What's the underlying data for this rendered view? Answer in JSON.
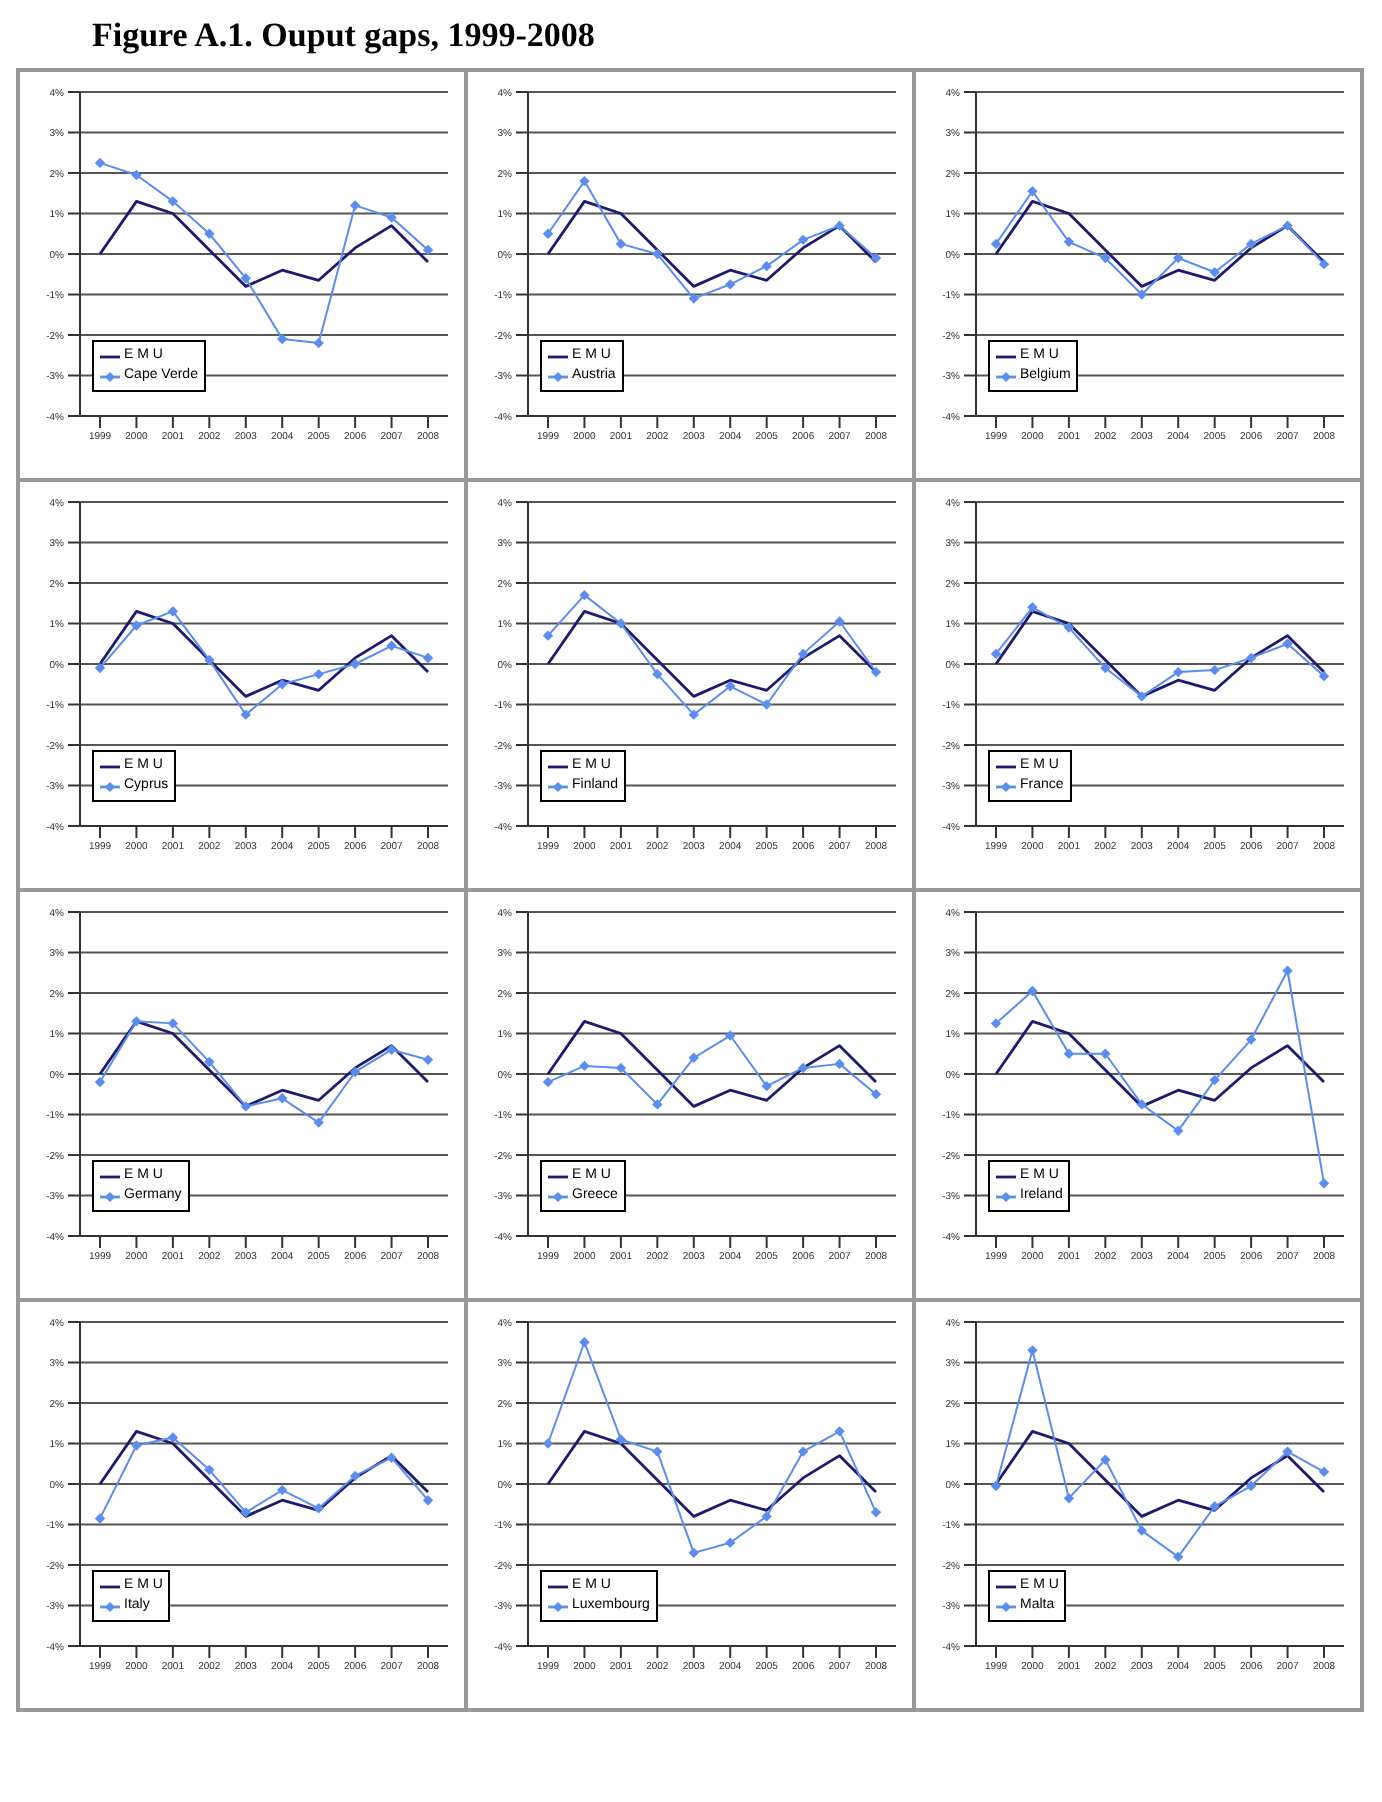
{
  "chart_data": [
    {
      "type": "line",
      "title": "Figure A.1. Ouput gaps, 1999-2008",
      "categories": [
        "1999",
        "2000",
        "2001",
        "2002",
        "2003",
        "2004",
        "2005",
        "2006",
        "2007",
        "2008"
      ],
      "ylim": [
        -4,
        4
      ],
      "yticks": [
        {
          "value": -4,
          "label": "-4%"
        },
        {
          "value": -3,
          "label": "-3%"
        },
        {
          "value": -2,
          "label": "-2%"
        },
        {
          "value": -1,
          "label": "-1%"
        },
        {
          "value": 0,
          "label": "0%"
        },
        {
          "value": 1,
          "label": "1%"
        },
        {
          "value": 2,
          "label": "2%"
        },
        {
          "value": 3,
          "label": "3%"
        },
        {
          "value": 4,
          "label": "4%"
        }
      ],
      "grid": "y",
      "legend": "bottom left",
      "series": [
        {
          "name": "E M U",
          "color": "#1f1a6e",
          "marker": "none",
          "values": [
            0,
            1.3,
            1.0,
            0.1,
            -0.8,
            -0.4,
            -0.65,
            0.15,
            0.7,
            -0.2
          ]
        },
        {
          "name": "Cape Verde",
          "color": "#5b8def",
          "marker": "diamond",
          "values": [
            2.25,
            1.95,
            1.3,
            0.5,
            -0.6,
            -2.1,
            -2.2,
            1.2,
            0.9,
            0.1
          ]
        }
      ]
    },
    {
      "type": "line",
      "categories": [
        "1999",
        "2000",
        "2001",
        "2002",
        "2003",
        "2004",
        "2005",
        "2006",
        "2007",
        "2008"
      ],
      "ylim": [
        -4,
        4
      ],
      "yticks": [
        {
          "value": -4,
          "label": "-4%"
        },
        {
          "value": -3,
          "label": "-3%"
        },
        {
          "value": -2,
          "label": "-2%"
        },
        {
          "value": -1,
          "label": "-1%"
        },
        {
          "value": 0,
          "label": "0%"
        },
        {
          "value": 1,
          "label": "1%"
        },
        {
          "value": 2,
          "label": "2%"
        },
        {
          "value": 3,
          "label": "3%"
        },
        {
          "value": 4,
          "label": "4%"
        }
      ],
      "grid": "y",
      "legend": "bottom left",
      "series": [
        {
          "name": "E M U",
          "color": "#1f1a6e",
          "marker": "none",
          "values": [
            0,
            1.3,
            1.0,
            0.1,
            -0.8,
            -0.4,
            -0.65,
            0.15,
            0.7,
            -0.2
          ]
        },
        {
          "name": "Austria",
          "color": "#5b8def",
          "marker": "diamond",
          "values": [
            0.5,
            1.8,
            0.25,
            0.0,
            -1.1,
            -0.75,
            -0.3,
            0.35,
            0.7,
            -0.1
          ]
        }
      ]
    },
    {
      "type": "line",
      "categories": [
        "1999",
        "2000",
        "2001",
        "2002",
        "2003",
        "2004",
        "2005",
        "2006",
        "2007",
        "2008"
      ],
      "ylim": [
        -4,
        4
      ],
      "yticks": [
        {
          "value": -4,
          "label": "-4%"
        },
        {
          "value": -3,
          "label": "-3%"
        },
        {
          "value": -2,
          "label": "-2%"
        },
        {
          "value": -1,
          "label": "-1%"
        },
        {
          "value": 0,
          "label": "0%"
        },
        {
          "value": 1,
          "label": "1%"
        },
        {
          "value": 2,
          "label": "2%"
        },
        {
          "value": 3,
          "label": "3%"
        },
        {
          "value": 4,
          "label": "4%"
        }
      ],
      "grid": "y",
      "legend": "bottom left",
      "series": [
        {
          "name": "E M U",
          "color": "#1f1a6e",
          "marker": "none",
          "values": [
            0,
            1.3,
            1.0,
            0.1,
            -0.8,
            -0.4,
            -0.65,
            0.15,
            0.7,
            -0.2
          ]
        },
        {
          "name": "Belgium",
          "color": "#5b8def",
          "marker": "diamond",
          "values": [
            0.25,
            1.55,
            0.3,
            -0.1,
            -1.0,
            -0.1,
            -0.45,
            0.25,
            0.7,
            -0.25
          ]
        }
      ]
    },
    {
      "type": "line",
      "categories": [
        "1999",
        "2000",
        "2001",
        "2002",
        "2003",
        "2004",
        "2005",
        "2006",
        "2007",
        "2008"
      ],
      "ylim": [
        -4,
        4
      ],
      "yticks": [
        {
          "value": -4,
          "label": "-4%"
        },
        {
          "value": -3,
          "label": "-3%"
        },
        {
          "value": -2,
          "label": "-2%"
        },
        {
          "value": -1,
          "label": "-1%"
        },
        {
          "value": 0,
          "label": "0%"
        },
        {
          "value": 1,
          "label": "1%"
        },
        {
          "value": 2,
          "label": "2%"
        },
        {
          "value": 3,
          "label": "3%"
        },
        {
          "value": 4,
          "label": "4%"
        }
      ],
      "grid": "y",
      "legend": "bottom left",
      "series": [
        {
          "name": "E M U",
          "color": "#1f1a6e",
          "marker": "none",
          "values": [
            0,
            1.3,
            1.0,
            0.1,
            -0.8,
            -0.4,
            -0.65,
            0.15,
            0.7,
            -0.2
          ]
        },
        {
          "name": "Cyprus",
          "color": "#5b8def",
          "marker": "diamond",
          "values": [
            -0.1,
            0.95,
            1.3,
            0.1,
            -1.25,
            -0.5,
            -0.25,
            0.0,
            0.45,
            0.15
          ]
        }
      ]
    },
    {
      "type": "line",
      "categories": [
        "1999",
        "2000",
        "2001",
        "2002",
        "2003",
        "2004",
        "2005",
        "2006",
        "2007",
        "2008"
      ],
      "ylim": [
        -4,
        4
      ],
      "yticks": [
        {
          "value": -4,
          "label": "-4%"
        },
        {
          "value": -3,
          "label": "-3%"
        },
        {
          "value": -2,
          "label": "-2%"
        },
        {
          "value": -1,
          "label": "-1%"
        },
        {
          "value": 0,
          "label": "0%"
        },
        {
          "value": 1,
          "label": "1%"
        },
        {
          "value": 2,
          "label": "2%"
        },
        {
          "value": 3,
          "label": "3%"
        },
        {
          "value": 4,
          "label": "4%"
        }
      ],
      "grid": "y",
      "legend": "bottom left",
      "series": [
        {
          "name": "E M U",
          "color": "#1f1a6e",
          "marker": "none",
          "values": [
            0,
            1.3,
            1.0,
            0.1,
            -0.8,
            -0.4,
            -0.65,
            0.15,
            0.7,
            -0.2
          ]
        },
        {
          "name": "Finland",
          "color": "#5b8def",
          "marker": "diamond",
          "values": [
            0.7,
            1.7,
            1.0,
            -0.25,
            -1.25,
            -0.55,
            -1.0,
            0.25,
            1.05,
            -0.2
          ]
        }
      ]
    },
    {
      "type": "line",
      "categories": [
        "1999",
        "2000",
        "2001",
        "2002",
        "2003",
        "2004",
        "2005",
        "2006",
        "2007",
        "2008"
      ],
      "ylim": [
        -4,
        4
      ],
      "yticks": [
        {
          "value": -4,
          "label": "-4%"
        },
        {
          "value": -3,
          "label": "-3%"
        },
        {
          "value": -2,
          "label": "-2%"
        },
        {
          "value": -1,
          "label": "-1%"
        },
        {
          "value": 0,
          "label": "0%"
        },
        {
          "value": 1,
          "label": "1%"
        },
        {
          "value": 2,
          "label": "2%"
        },
        {
          "value": 3,
          "label": "3%"
        },
        {
          "value": 4,
          "label": "4%"
        }
      ],
      "grid": "y",
      "legend": "bottom left",
      "series": [
        {
          "name": "E M U",
          "color": "#1f1a6e",
          "marker": "none",
          "values": [
            0,
            1.3,
            1.0,
            0.1,
            -0.8,
            -0.4,
            -0.65,
            0.15,
            0.7,
            -0.2
          ]
        },
        {
          "name": "France",
          "color": "#5b8def",
          "marker": "diamond",
          "values": [
            0.25,
            1.4,
            0.9,
            -0.1,
            -0.8,
            -0.2,
            -0.15,
            0.15,
            0.5,
            -0.3
          ]
        }
      ]
    },
    {
      "type": "line",
      "categories": [
        "1999",
        "2000",
        "2001",
        "2002",
        "2003",
        "2004",
        "2005",
        "2006",
        "2007",
        "2008"
      ],
      "ylim": [
        -4,
        4
      ],
      "yticks": [
        {
          "value": -4,
          "label": "-4%"
        },
        {
          "value": -3,
          "label": "-3%"
        },
        {
          "value": -2,
          "label": "-2%"
        },
        {
          "value": -1,
          "label": "-1%"
        },
        {
          "value": 0,
          "label": "0%"
        },
        {
          "value": 1,
          "label": "1%"
        },
        {
          "value": 2,
          "label": "2%"
        },
        {
          "value": 3,
          "label": "3%"
        },
        {
          "value": 4,
          "label": "4%"
        }
      ],
      "grid": "y",
      "legend": "bottom left",
      "series": [
        {
          "name": "E M U",
          "color": "#1f1a6e",
          "marker": "none",
          "values": [
            0,
            1.3,
            1.0,
            0.1,
            -0.8,
            -0.4,
            -0.65,
            0.15,
            0.7,
            -0.2
          ]
        },
        {
          "name": "Germany",
          "color": "#5b8def",
          "marker": "diamond",
          "values": [
            -0.2,
            1.3,
            1.25,
            0.3,
            -0.8,
            -0.6,
            -1.2,
            0.05,
            0.6,
            0.35
          ]
        }
      ]
    },
    {
      "type": "line",
      "categories": [
        "1999",
        "2000",
        "2001",
        "2002",
        "2003",
        "2004",
        "2005",
        "2006",
        "2007",
        "2008"
      ],
      "ylim": [
        -4,
        4
      ],
      "yticks": [
        {
          "value": -4,
          "label": "-4%"
        },
        {
          "value": -3,
          "label": "-3%"
        },
        {
          "value": -2,
          "label": "-2%"
        },
        {
          "value": -1,
          "label": "-1%"
        },
        {
          "value": 0,
          "label": "0%"
        },
        {
          "value": 1,
          "label": "1%"
        },
        {
          "value": 2,
          "label": "2%"
        },
        {
          "value": 3,
          "label": "3%"
        },
        {
          "value": 4,
          "label": "4%"
        }
      ],
      "grid": "y",
      "legend": "bottom left",
      "series": [
        {
          "name": "E M U",
          "color": "#1f1a6e",
          "marker": "none",
          "values": [
            0,
            1.3,
            1.0,
            0.1,
            -0.8,
            -0.4,
            -0.65,
            0.15,
            0.7,
            -0.2
          ]
        },
        {
          "name": "Greece",
          "color": "#5b8def",
          "marker": "diamond",
          "values": [
            -0.2,
            0.2,
            0.15,
            -0.75,
            0.4,
            0.95,
            -0.3,
            0.15,
            0.25,
            -0.5
          ]
        }
      ]
    },
    {
      "type": "line",
      "categories": [
        "1999",
        "2000",
        "2001",
        "2002",
        "2003",
        "2004",
        "2005",
        "2006",
        "2007",
        "2008"
      ],
      "ylim": [
        -4,
        4
      ],
      "yticks": [
        {
          "value": -4,
          "label": "-4%"
        },
        {
          "value": -3,
          "label": "-3%"
        },
        {
          "value": -2,
          "label": "-2%"
        },
        {
          "value": -1,
          "label": "-1%"
        },
        {
          "value": 0,
          "label": "0%"
        },
        {
          "value": 1,
          "label": "1%"
        },
        {
          "value": 2,
          "label": "2%"
        },
        {
          "value": 3,
          "label": "3%"
        },
        {
          "value": 4,
          "label": "4%"
        }
      ],
      "grid": "y",
      "legend": "bottom left",
      "series": [
        {
          "name": "E M U",
          "color": "#1f1a6e",
          "marker": "none",
          "values": [
            0,
            1.3,
            1.0,
            0.1,
            -0.8,
            -0.4,
            -0.65,
            0.15,
            0.7,
            -0.2
          ]
        },
        {
          "name": "Ireland",
          "color": "#5b8def",
          "marker": "diamond",
          "values": [
            1.25,
            2.05,
            0.5,
            0.5,
            -0.75,
            -1.4,
            -0.15,
            0.85,
            2.55,
            -2.7
          ]
        }
      ]
    },
    {
      "type": "line",
      "categories": [
        "1999",
        "2000",
        "2001",
        "2002",
        "2003",
        "2004",
        "2005",
        "2006",
        "2007",
        "2008"
      ],
      "ylim": [
        -4,
        4
      ],
      "yticks": [
        {
          "value": -4,
          "label": "-4%"
        },
        {
          "value": -3,
          "label": "-3%"
        },
        {
          "value": -2,
          "label": "-2%"
        },
        {
          "value": -1,
          "label": "-1%"
        },
        {
          "value": 0,
          "label": "0%"
        },
        {
          "value": 1,
          "label": "1%"
        },
        {
          "value": 2,
          "label": "2%"
        },
        {
          "value": 3,
          "label": "3%"
        },
        {
          "value": 4,
          "label": "4%"
        }
      ],
      "grid": "y",
      "legend": "bottom left",
      "series": [
        {
          "name": "E M U",
          "color": "#1f1a6e",
          "marker": "none",
          "values": [
            0,
            1.3,
            1.0,
            0.1,
            -0.8,
            -0.4,
            -0.65,
            0.15,
            0.7,
            -0.2
          ]
        },
        {
          "name": "Italy",
          "color": "#5b8def",
          "marker": "diamond",
          "values": [
            -0.85,
            0.95,
            1.15,
            0.35,
            -0.7,
            -0.15,
            -0.6,
            0.2,
            0.65,
            -0.4
          ]
        }
      ]
    },
    {
      "type": "line",
      "categories": [
        "1999",
        "2000",
        "2001",
        "2002",
        "2003",
        "2004",
        "2005",
        "2006",
        "2007",
        "2008"
      ],
      "ylim": [
        -4,
        4
      ],
      "yticks": [
        {
          "value": -4,
          "label": "-4%"
        },
        {
          "value": -3,
          "label": "-3%"
        },
        {
          "value": -2,
          "label": "-2%"
        },
        {
          "value": -1,
          "label": "-1%"
        },
        {
          "value": 0,
          "label": "0%"
        },
        {
          "value": 1,
          "label": "1%"
        },
        {
          "value": 2,
          "label": "2%"
        },
        {
          "value": 3,
          "label": "3%"
        },
        {
          "value": 4,
          "label": "4%"
        }
      ],
      "grid": "y",
      "legend": "bottom left",
      "series": [
        {
          "name": "E M U",
          "color": "#1f1a6e",
          "marker": "none",
          "values": [
            0,
            1.3,
            1.0,
            0.1,
            -0.8,
            -0.4,
            -0.65,
            0.15,
            0.7,
            -0.2
          ]
        },
        {
          "name": "Luxembourg",
          "color": "#5b8def",
          "marker": "diamond",
          "values": [
            1.0,
            3.5,
            1.1,
            0.8,
            -1.7,
            -1.45,
            -0.8,
            0.8,
            1.3,
            -0.7
          ]
        }
      ]
    },
    {
      "type": "line",
      "categories": [
        "1999",
        "2000",
        "2001",
        "2002",
        "2003",
        "2004",
        "2005",
        "2006",
        "2007",
        "2008"
      ],
      "ylim": [
        -4,
        4
      ],
      "yticks": [
        {
          "value": -4,
          "label": "-4%"
        },
        {
          "value": -3,
          "label": "-3%"
        },
        {
          "value": -2,
          "label": "-2%"
        },
        {
          "value": -1,
          "label": "-1%"
        },
        {
          "value": 0,
          "label": "0%"
        },
        {
          "value": 1,
          "label": "1%"
        },
        {
          "value": 2,
          "label": "2%"
        },
        {
          "value": 3,
          "label": "3%"
        },
        {
          "value": 4,
          "label": "4%"
        }
      ],
      "grid": "y",
      "legend": "bottom left",
      "series": [
        {
          "name": "E M U",
          "color": "#1f1a6e",
          "marker": "none",
          "values": [
            0,
            1.3,
            1.0,
            0.1,
            -0.8,
            -0.4,
            -0.65,
            0.15,
            0.7,
            -0.2
          ]
        },
        {
          "name": "Malta",
          "color": "#5b8def",
          "marker": "diamond",
          "values": [
            -0.05,
            3.3,
            -0.35,
            0.6,
            -1.15,
            -1.8,
            -0.55,
            -0.05,
            0.8,
            0.3
          ]
        }
      ]
    }
  ]
}
